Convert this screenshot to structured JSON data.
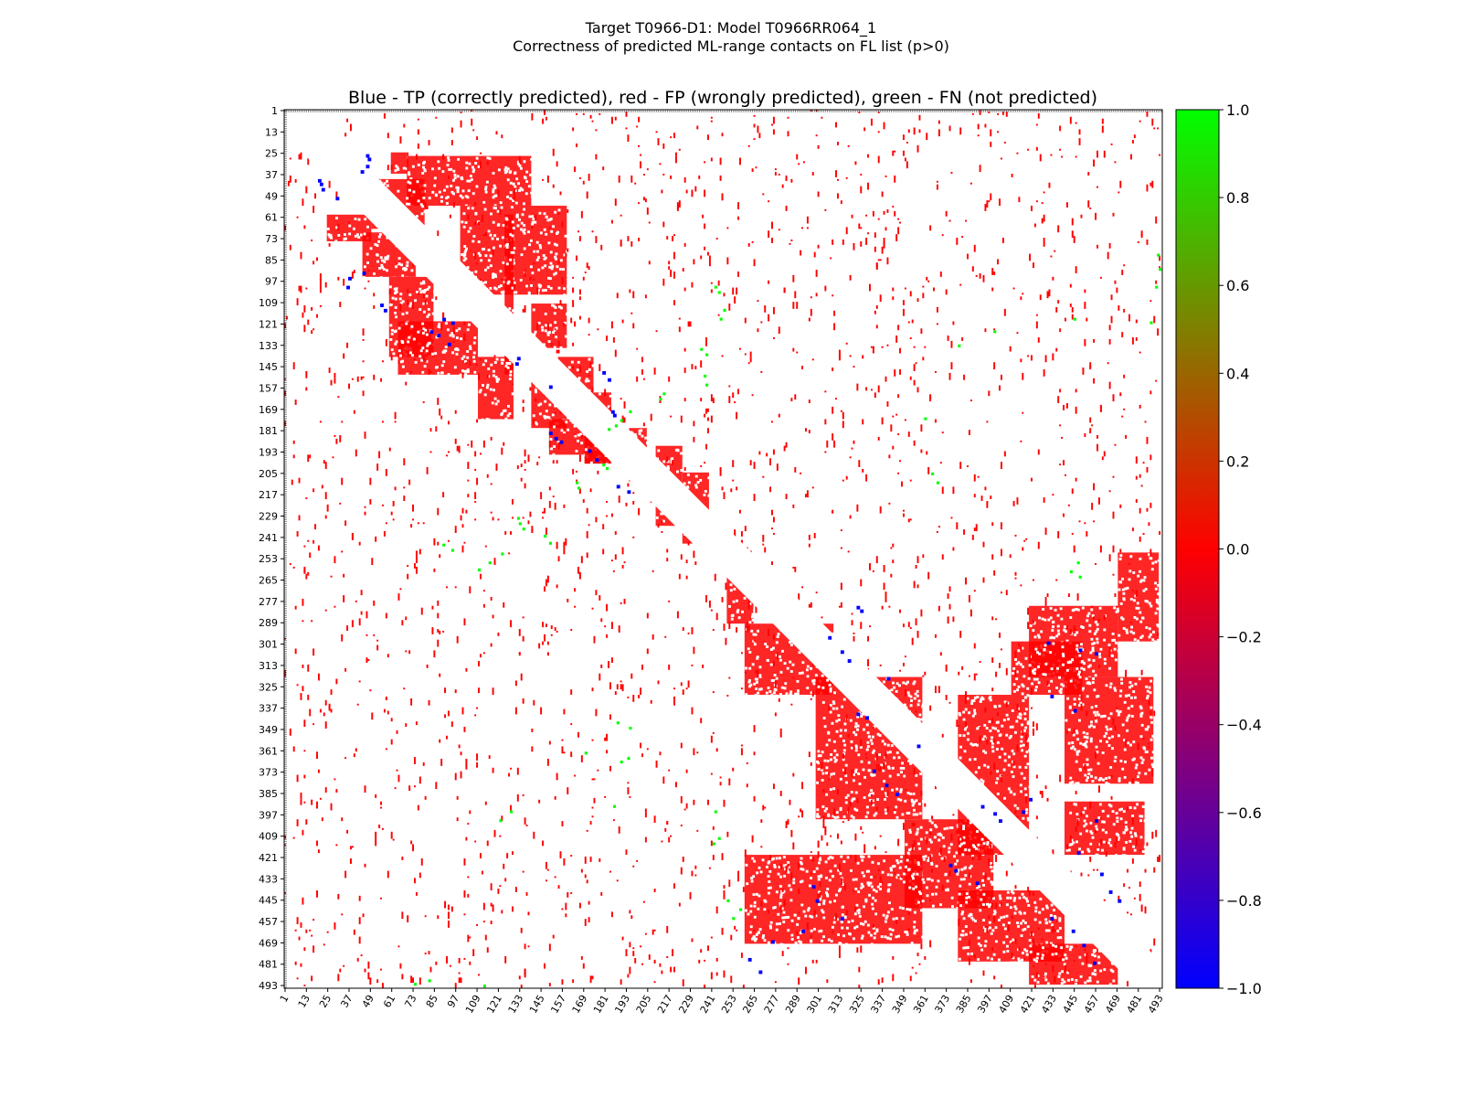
{
  "suptitle": {
    "line1": "Target T0966-D1: Model T0966RR064_1",
    "line2": "Correctness of predicted ML-range contacts on FL list (p>0)"
  },
  "chart_data": {
    "type": "heatmap",
    "title": "Blue - TP (correctly predicted), red - FP (wrongly predicted), green - FN (not predicted)",
    "residue_range": [
      1,
      494
    ],
    "tick_labels": [
      "1",
      "13",
      "25",
      "37",
      "49",
      "61",
      "73",
      "85",
      "97",
      "109",
      "121",
      "133",
      "145",
      "157",
      "169",
      "181",
      "193",
      "205",
      "217",
      "229",
      "241",
      "253",
      "265",
      "277",
      "289",
      "301",
      "313",
      "325",
      "337",
      "349",
      "361",
      "373",
      "385",
      "397",
      "409",
      "421",
      "433",
      "445",
      "457",
      "469",
      "481",
      "493"
    ],
    "colorbar": {
      "min": -1.0,
      "max": 1.0,
      "tick_labels": [
        "1.0",
        "0.8",
        "0.6",
        "0.4",
        "0.2",
        "0.0",
        "−0.2",
        "−0.4",
        "−0.6",
        "−0.8",
        "−1.0"
      ],
      "colors": {
        "bottom": "#0000ff",
        "middle": "#ff0000",
        "top": "#00ff00"
      }
    },
    "category_colors": {
      "TP": "#0000ff",
      "FP": "#ff0000",
      "FN": "#00ff00"
    },
    "upper_red_blocks": [
      [
        25,
        37,
        61,
        71
      ],
      [
        27,
        55,
        70,
        140
      ],
      [
        40,
        68,
        50,
        80
      ],
      [
        55,
        105,
        100,
        160
      ],
      [
        60,
        150,
        125,
        130
      ],
      [
        110,
        135,
        140,
        160
      ],
      [
        140,
        160,
        155,
        175
      ],
      [
        160,
        200,
        170,
        185
      ],
      [
        180,
        210,
        195,
        205
      ],
      [
        190,
        235,
        210,
        225
      ],
      [
        205,
        245,
        225,
        240
      ]
    ],
    "lower_red_blocks": [
      [
        60,
        75,
        25,
        50
      ],
      [
        70,
        95,
        45,
        75
      ],
      [
        95,
        140,
        60,
        85
      ],
      [
        120,
        150,
        65,
        110
      ],
      [
        140,
        175,
        110,
        130
      ],
      [
        150,
        180,
        140,
        160
      ],
      [
        175,
        195,
        150,
        175
      ],
      [
        180,
        200,
        170,
        185
      ],
      [
        260,
        290,
        250,
        265
      ],
      [
        290,
        330,
        260,
        310
      ],
      [
        320,
        400,
        300,
        360
      ],
      [
        400,
        450,
        350,
        400
      ],
      [
        420,
        470,
        260,
        360
      ],
      [
        440,
        480,
        380,
        440
      ],
      [
        470,
        493,
        420,
        470
      ],
      [
        250,
        300,
        470,
        493
      ],
      [
        280,
        320,
        420,
        470
      ],
      [
        320,
        380,
        440,
        490
      ],
      [
        330,
        420,
        380,
        420
      ],
      [
        300,
        330,
        410,
        450
      ],
      [
        390,
        420,
        440,
        485
      ]
    ],
    "blue_points": [
      [
        26,
        47
      ],
      [
        28,
        48
      ],
      [
        32,
        47
      ],
      [
        35,
        44
      ],
      [
        40,
        20
      ],
      [
        42,
        21
      ],
      [
        45,
        22
      ],
      [
        50,
        30
      ],
      [
        92,
        45
      ],
      [
        95,
        37
      ],
      [
        100,
        36
      ],
      [
        110,
        55
      ],
      [
        113,
        57
      ],
      [
        118,
        90
      ],
      [
        120,
        95
      ],
      [
        125,
        83
      ],
      [
        127,
        87
      ],
      [
        132,
        93
      ],
      [
        140,
        132
      ],
      [
        143,
        131
      ],
      [
        148,
        180
      ],
      [
        152,
        183
      ],
      [
        156,
        150
      ],
      [
        170,
        185
      ],
      [
        172,
        186
      ],
      [
        182,
        150
      ],
      [
        185,
        153
      ],
      [
        187,
        156
      ],
      [
        192,
        172
      ],
      [
        197,
        176
      ],
      [
        212,
        188
      ],
      [
        215,
        194
      ],
      [
        280,
        323
      ],
      [
        282,
        325
      ],
      [
        297,
        307
      ],
      [
        305,
        314
      ],
      [
        310,
        318
      ],
      [
        320,
        340
      ],
      [
        340,
        323
      ],
      [
        342,
        328
      ],
      [
        358,
        357
      ],
      [
        372,
        332
      ],
      [
        380,
        339
      ],
      [
        385,
        345
      ],
      [
        392,
        393
      ],
      [
        396,
        400
      ],
      [
        400,
        403
      ],
      [
        425,
        375
      ],
      [
        428,
        378
      ],
      [
        435,
        390
      ],
      [
        437,
        298
      ],
      [
        445,
        300
      ],
      [
        455,
        314
      ],
      [
        462,
        292
      ],
      [
        468,
        275
      ],
      [
        478,
        262
      ],
      [
        485,
        268
      ],
      [
        300,
        430
      ],
      [
        304,
        448
      ],
      [
        306,
        457
      ],
      [
        330,
        432
      ],
      [
        338,
        445
      ],
      [
        388,
        420
      ],
      [
        395,
        416
      ],
      [
        400,
        457
      ],
      [
        418,
        447
      ],
      [
        430,
        460
      ],
      [
        440,
        465
      ],
      [
        445,
        470
      ],
      [
        455,
        432
      ],
      [
        462,
        444
      ],
      [
        470,
        450
      ],
      [
        480,
        456
      ]
    ],
    "green_points": [
      [
        100,
        243
      ],
      [
        103,
        245
      ],
      [
        113,
        248
      ],
      [
        118,
        246
      ],
      [
        135,
        235
      ],
      [
        138,
        238
      ],
      [
        150,
        237
      ],
      [
        155,
        238
      ],
      [
        160,
        214
      ],
      [
        163,
        212
      ],
      [
        170,
        195
      ],
      [
        175,
        190
      ],
      [
        178,
        187
      ],
      [
        180,
        183
      ],
      [
        200,
        180
      ],
      [
        202,
        182
      ],
      [
        210,
        165
      ],
      [
        213,
        166
      ],
      [
        230,
        132
      ],
      [
        233,
        133
      ],
      [
        236,
        135
      ],
      [
        240,
        147
      ],
      [
        244,
        150
      ],
      [
        250,
        123
      ],
      [
        255,
        116
      ],
      [
        259,
        110
      ],
      [
        245,
        90
      ],
      [
        248,
        95
      ],
      [
        205,
        365
      ],
      [
        210,
        368
      ],
      [
        174,
        361
      ],
      [
        125,
        400
      ],
      [
        133,
        380
      ],
      [
        118,
        445
      ],
      [
        100,
        491
      ],
      [
        90,
        493
      ],
      [
        82,
        492
      ],
      [
        120,
        488
      ],
      [
        260,
        443
      ],
      [
        255,
        447
      ],
      [
        263,
        448
      ],
      [
        345,
        188
      ],
      [
        348,
        195
      ],
      [
        362,
        170
      ],
      [
        365,
        194
      ],
      [
        367,
        190
      ],
      [
        392,
        186
      ],
      [
        395,
        128
      ],
      [
        400,
        122
      ],
      [
        445,
        250
      ],
      [
        450,
        257
      ],
      [
        455,
        253
      ],
      [
        490,
        82
      ],
      [
        492,
        74
      ],
      [
        493,
        113
      ],
      [
        495,
        105
      ],
      [
        410,
        245
      ],
      [
        413,
        242
      ],
      [
        395,
        243
      ]
    ]
  }
}
